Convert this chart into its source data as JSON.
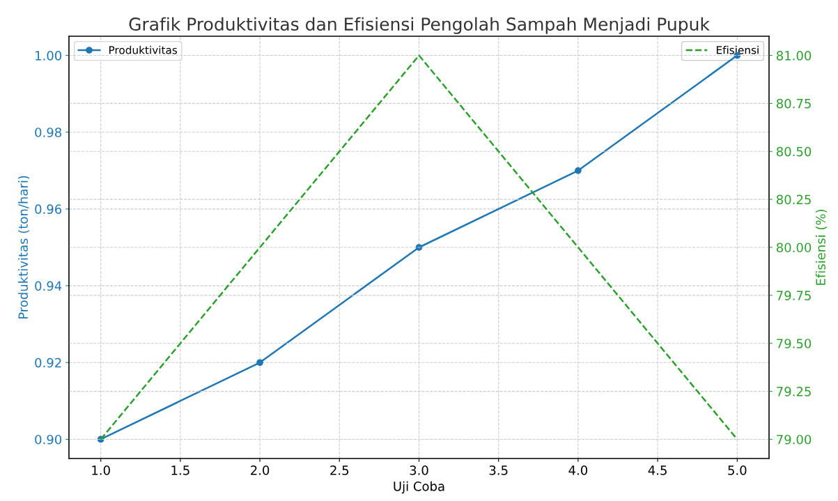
{
  "chart_data": {
    "type": "line",
    "title": "Grafik Produktivitas dan Efisiensi Pengolah Sampah Menjadi Pupuk",
    "xlabel": "Uji Coba",
    "ylabel": "Produktivitas (ton/hari)",
    "y2label": "Efisiensi (%)",
    "x": [
      1,
      2,
      3,
      4,
      5
    ],
    "series": [
      {
        "name": "Produktivitas",
        "color": "#1f77b4",
        "values": [
          0.9,
          0.92,
          0.95,
          0.97,
          1.0
        ],
        "marker": "circle",
        "line_style": "solid"
      },
      {
        "name": "Efisiensi",
        "color": "#2ca02c",
        "values": [
          79,
          80,
          81,
          80,
          79
        ],
        "axis": "y2",
        "marker": "none",
        "line_style": "dashed"
      }
    ],
    "xlim": [
      0.8,
      5.2
    ],
    "xticks": [
      {
        "value": 1,
        "label": "1.0"
      },
      {
        "value": 1.5,
        "label": "1.5"
      },
      {
        "value": 2,
        "label": "2.0"
      },
      {
        "value": 2.5,
        "label": "2.5"
      },
      {
        "value": 3,
        "label": "3.0"
      },
      {
        "value": 3.5,
        "label": "3.5"
      },
      {
        "value": 4,
        "label": "4.0"
      },
      {
        "value": 4.5,
        "label": "4.5"
      },
      {
        "value": 5,
        "label": "5.0"
      }
    ],
    "ylim": [
      0.895,
      1.005
    ],
    "yticks": [
      {
        "value": 0.9,
        "label": "0.90"
      },
      {
        "value": 0.92,
        "label": "0.92"
      },
      {
        "value": 0.94,
        "label": "0.94"
      },
      {
        "value": 0.96,
        "label": "0.96"
      },
      {
        "value": 0.98,
        "label": "0.98"
      },
      {
        "value": 1.0,
        "label": "1.00"
      }
    ],
    "y2lim": [
      78.9,
      81.1
    ],
    "y2ticks": [
      {
        "value": 79,
        "label": "79.00"
      },
      {
        "value": 79.25,
        "label": "79.25"
      },
      {
        "value": 79.5,
        "label": "79.50"
      },
      {
        "value": 79.75,
        "label": "79.75"
      },
      {
        "value": 80,
        "label": "80.00"
      },
      {
        "value": 80.25,
        "label": "80.25"
      },
      {
        "value": 80.5,
        "label": "80.50"
      },
      {
        "value": 80.75,
        "label": "80.75"
      },
      {
        "value": 81,
        "label": "81.00"
      }
    ],
    "grid": true,
    "legend": "top"
  }
}
